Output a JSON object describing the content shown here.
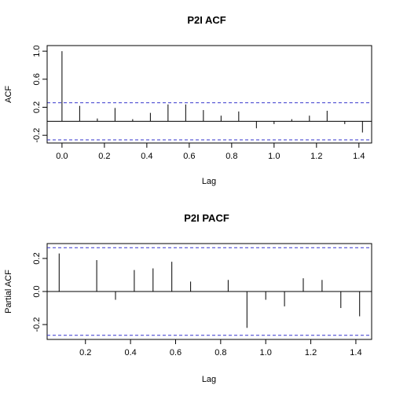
{
  "chart_data": [
    {
      "type": "bar",
      "title": "P2I ACF",
      "xlabel": "Lag",
      "ylabel": "ACF",
      "xlim": [
        -0.07,
        1.46
      ],
      "ylim": [
        -0.31,
        1.08
      ],
      "xticks": [
        "0.0",
        "0.2",
        "0.4",
        "0.6",
        "0.8",
        "1.0",
        "1.2",
        "1.4"
      ],
      "yticks": [
        "-0.2",
        "0.2",
        "0.6",
        "1.0"
      ],
      "xtick_values": [
        0.0,
        0.2,
        0.4,
        0.6,
        0.8,
        1.0,
        1.2,
        1.4
      ],
      "ytick_values": [
        -0.2,
        0.2,
        0.6,
        1.0
      ],
      "ci": 0.265,
      "x": [
        0.0,
        0.0833,
        0.1667,
        0.25,
        0.3333,
        0.4167,
        0.5,
        0.5833,
        0.6667,
        0.75,
        0.8333,
        0.9167,
        1.0,
        1.0833,
        1.1667,
        1.25,
        1.3333,
        1.4167
      ],
      "values": [
        1.0,
        0.22,
        0.04,
        0.19,
        0.03,
        0.12,
        0.24,
        0.24,
        0.16,
        0.08,
        0.14,
        -0.1,
        -0.04,
        0.03,
        0.08,
        0.15,
        -0.04,
        -0.16
      ],
      "grid": false
    },
    {
      "type": "bar",
      "title": "P2I PACF",
      "xlabel": "Lag",
      "ylabel": "Partial ACF",
      "xlim": [
        0.03,
        1.47
      ],
      "ylim": [
        -0.29,
        0.29
      ],
      "xticks": [
        "0.2",
        "0.4",
        "0.6",
        "0.8",
        "1.0",
        "1.2",
        "1.4"
      ],
      "yticks": [
        "-0.2",
        "0.0",
        "0.2"
      ],
      "xtick_values": [
        0.2,
        0.4,
        0.6,
        0.8,
        1.0,
        1.2,
        1.4
      ],
      "ytick_values": [
        -0.2,
        0.0,
        0.2
      ],
      "ci": 0.265,
      "x": [
        0.0833,
        0.1667,
        0.25,
        0.3333,
        0.4167,
        0.5,
        0.5833,
        0.6667,
        0.75,
        0.8333,
        0.9167,
        1.0,
        1.0833,
        1.1667,
        1.25,
        1.3333,
        1.4167
      ],
      "values": [
        0.23,
        0.0,
        0.19,
        -0.05,
        0.13,
        0.14,
        0.18,
        0.06,
        0.0,
        0.07,
        -0.22,
        -0.05,
        -0.09,
        0.08,
        0.07,
        -0.1,
        -0.15
      ],
      "grid": false
    }
  ]
}
